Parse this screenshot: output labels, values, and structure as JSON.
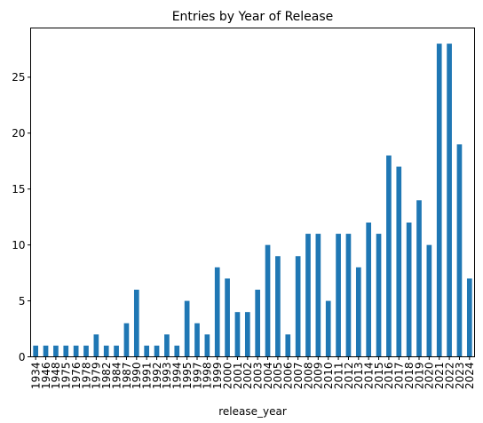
{
  "chart_data": {
    "type": "bar",
    "title": "Entries by Year of Release",
    "xlabel": "release_year",
    "ylabel": "",
    "ylim": [
      0,
      29.4
    ],
    "yticks": [
      0,
      5,
      10,
      15,
      20,
      25
    ],
    "grid": false,
    "bar_color": "#1f77b4",
    "categories": [
      "1934",
      "1946",
      "1948",
      "1975",
      "1976",
      "1978",
      "1979",
      "1982",
      "1984",
      "1987",
      "1990",
      "1991",
      "1992",
      "1993",
      "1994",
      "1995",
      "1997",
      "1998",
      "1999",
      "2000",
      "2001",
      "2002",
      "2003",
      "2004",
      "2005",
      "2006",
      "2007",
      "2008",
      "2009",
      "2010",
      "2011",
      "2012",
      "2013",
      "2014",
      "2015",
      "2016",
      "2017",
      "2018",
      "2019",
      "2020",
      "2021",
      "2022",
      "2023",
      "2024"
    ],
    "values": [
      1,
      1,
      1,
      1,
      1,
      1,
      2,
      1,
      1,
      3,
      6,
      1,
      1,
      2,
      1,
      5,
      3,
      2,
      8,
      7,
      4,
      4,
      6,
      10,
      9,
      2,
      9,
      11,
      11,
      5,
      11,
      11,
      8,
      12,
      11,
      18,
      17,
      12,
      14,
      10,
      28,
      28,
      19,
      7
    ]
  }
}
